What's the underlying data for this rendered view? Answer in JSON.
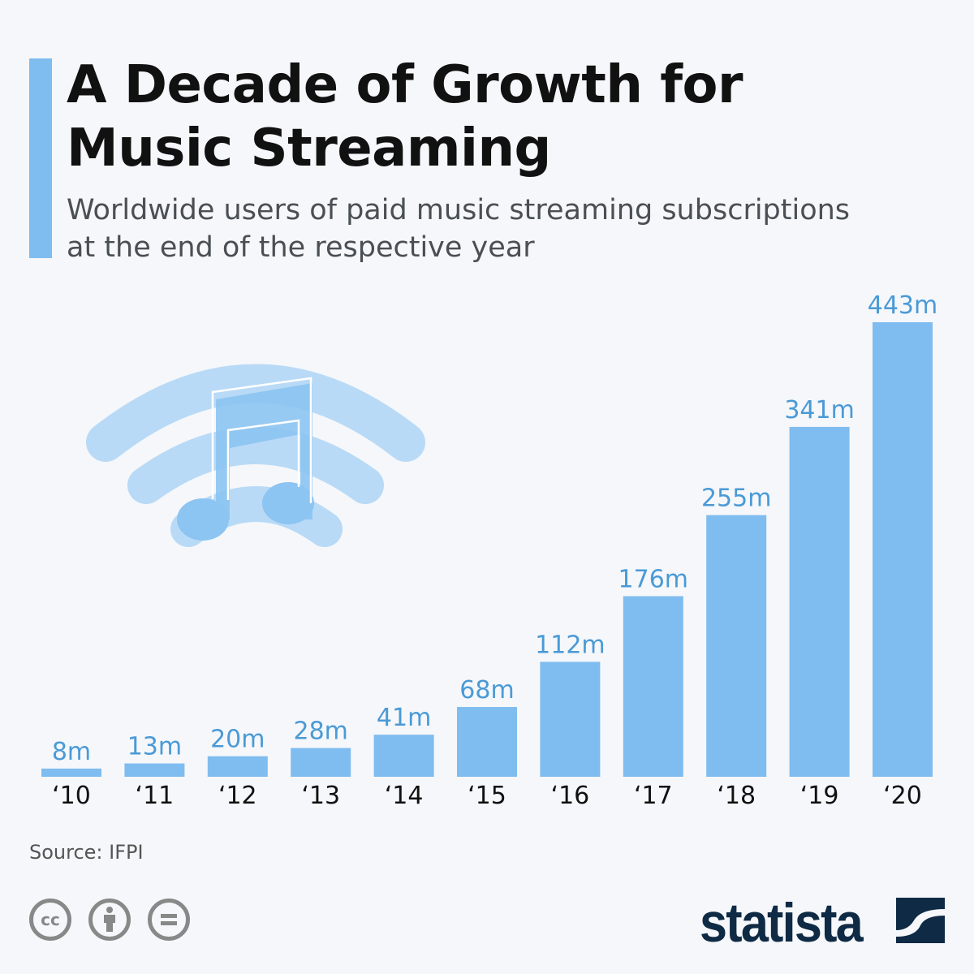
{
  "title_lines": [
    "A Decade of Growth for",
    "Music Streaming"
  ],
  "subtitle_lines": [
    "Worldwide users of paid music streaming subscriptions",
    "at the end of the respective year"
  ],
  "source": "Source: IFPI",
  "brand": "statista",
  "colors": {
    "bar": "#7fbcef",
    "label": "#4a9ad6",
    "accent": "#7fbcef",
    "brand": "#0f2a44"
  },
  "icons": [
    "music-note-wifi-illustration",
    "cc-icon",
    "attribution-icon",
    "no-derivatives-icon",
    "statista-logo-icon"
  ],
  "chart_data": {
    "type": "bar",
    "categories": [
      "‘10",
      "‘11",
      "‘12",
      "‘13",
      "‘14",
      "‘15",
      "‘16",
      "‘17",
      "‘18",
      "‘19",
      "‘20"
    ],
    "values": [
      8,
      13,
      20,
      28,
      41,
      68,
      112,
      176,
      255,
      341,
      443
    ],
    "value_labels": [
      "8m",
      "13m",
      "20m",
      "28m",
      "41m",
      "68m",
      "112m",
      "176m",
      "255m",
      "341m",
      "443m"
    ],
    "unit": "m",
    "ylim": [
      0,
      443
    ],
    "grid": false,
    "legend": "none"
  }
}
